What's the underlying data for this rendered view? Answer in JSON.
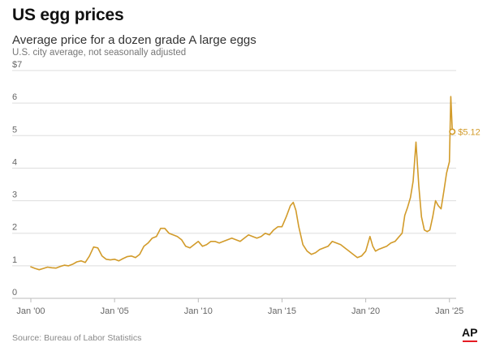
{
  "header": {
    "title": "US egg prices",
    "subtitle": "Average price for a dozen grade A large eggs",
    "note": "U.S. city average, not seasonally adjusted"
  },
  "footer": {
    "source": "Source: Bureau of Labor Statistics",
    "logo_text": "AP"
  },
  "colors": {
    "line": "#d29b2a",
    "grid": "#dddddd",
    "axis": "#bbbbbb",
    "logo_accent": "#e51b23"
  },
  "chart_data": {
    "type": "line",
    "title": "US egg prices",
    "subtitle": "Average price for a dozen grade A large eggs",
    "xlabel": "",
    "ylabel": "",
    "ylim": [
      0,
      7
    ],
    "xlim": [
      2000,
      2025.4
    ],
    "y_ticks": [
      "0",
      "1",
      "2",
      "3",
      "4",
      "5",
      "6",
      "$7"
    ],
    "y_tick_values": [
      0,
      1,
      2,
      3,
      4,
      5,
      6,
      7
    ],
    "x_ticks": [
      "Jan '00",
      "Jan '05",
      "Jan '10",
      "Jan '15",
      "Jan '20",
      "Jan '25"
    ],
    "x_tick_values": [
      2000,
      2005,
      2010,
      2015,
      2020,
      2025
    ],
    "grid": true,
    "end_label": "$5.12",
    "series": [
      {
        "x": [
          2000.0,
          2000.25,
          2000.5,
          2000.75,
          2001.0,
          2001.25,
          2001.5,
          2001.75,
          2002.0,
          2002.25,
          2002.5,
          2002.75,
          2003.0,
          2003.25,
          2003.5,
          2003.75,
          2004.0,
          2004.25,
          2004.5,
          2004.75,
          2005.0,
          2005.25,
          2005.5,
          2005.75,
          2006.0,
          2006.25,
          2006.5,
          2006.75,
          2007.0,
          2007.25,
          2007.5,
          2007.75,
          2008.0,
          2008.25,
          2008.5,
          2008.75,
          2009.0,
          2009.25,
          2009.5,
          2009.75,
          2010.0,
          2010.25,
          2010.5,
          2010.75,
          2011.0,
          2011.25,
          2011.5,
          2011.75,
          2012.0,
          2012.25,
          2012.5,
          2012.75,
          2013.0,
          2013.25,
          2013.5,
          2013.75,
          2014.0,
          2014.25,
          2014.5,
          2014.75,
          2015.0,
          2015.25,
          2015.5,
          2015.67,
          2015.83,
          2016.0,
          2016.25,
          2016.5,
          2016.75,
          2017.0,
          2017.25,
          2017.5,
          2017.75,
          2018.0,
          2018.25,
          2018.5,
          2018.75,
          2019.0,
          2019.25,
          2019.5,
          2019.75,
          2020.0,
          2020.25,
          2020.42,
          2020.58,
          2020.75,
          2021.0,
          2021.25,
          2021.5,
          2021.75,
          2022.0,
          2022.17,
          2022.33,
          2022.5,
          2022.67,
          2022.83,
          2023.0,
          2023.17,
          2023.33,
          2023.5,
          2023.67,
          2023.83,
          2024.0,
          2024.17,
          2024.33,
          2024.5,
          2024.67,
          2024.83,
          2025.0,
          2025.08,
          2025.17
        ],
        "values": [
          0.97,
          0.92,
          0.88,
          0.92,
          0.96,
          0.94,
          0.93,
          0.98,
          1.02,
          1.0,
          1.05,
          1.12,
          1.15,
          1.1,
          1.3,
          1.58,
          1.55,
          1.3,
          1.2,
          1.18,
          1.2,
          1.15,
          1.22,
          1.28,
          1.3,
          1.25,
          1.35,
          1.6,
          1.7,
          1.85,
          1.9,
          2.15,
          2.15,
          2.0,
          1.95,
          1.9,
          1.8,
          1.6,
          1.55,
          1.65,
          1.75,
          1.6,
          1.65,
          1.75,
          1.75,
          1.7,
          1.75,
          1.8,
          1.85,
          1.8,
          1.75,
          1.85,
          1.95,
          1.9,
          1.85,
          1.9,
          2.0,
          1.95,
          2.1,
          2.2,
          2.2,
          2.5,
          2.85,
          2.95,
          2.7,
          2.2,
          1.65,
          1.45,
          1.35,
          1.4,
          1.5,
          1.55,
          1.6,
          1.75,
          1.7,
          1.65,
          1.55,
          1.45,
          1.35,
          1.25,
          1.3,
          1.45,
          1.9,
          1.6,
          1.45,
          1.5,
          1.55,
          1.6,
          1.7,
          1.75,
          1.9,
          2.0,
          2.55,
          2.8,
          3.1,
          3.6,
          4.8,
          3.45,
          2.5,
          2.1,
          2.05,
          2.1,
          2.5,
          3.0,
          2.85,
          2.75,
          3.3,
          3.85,
          4.2,
          6.2,
          5.12
        ]
      }
    ]
  }
}
